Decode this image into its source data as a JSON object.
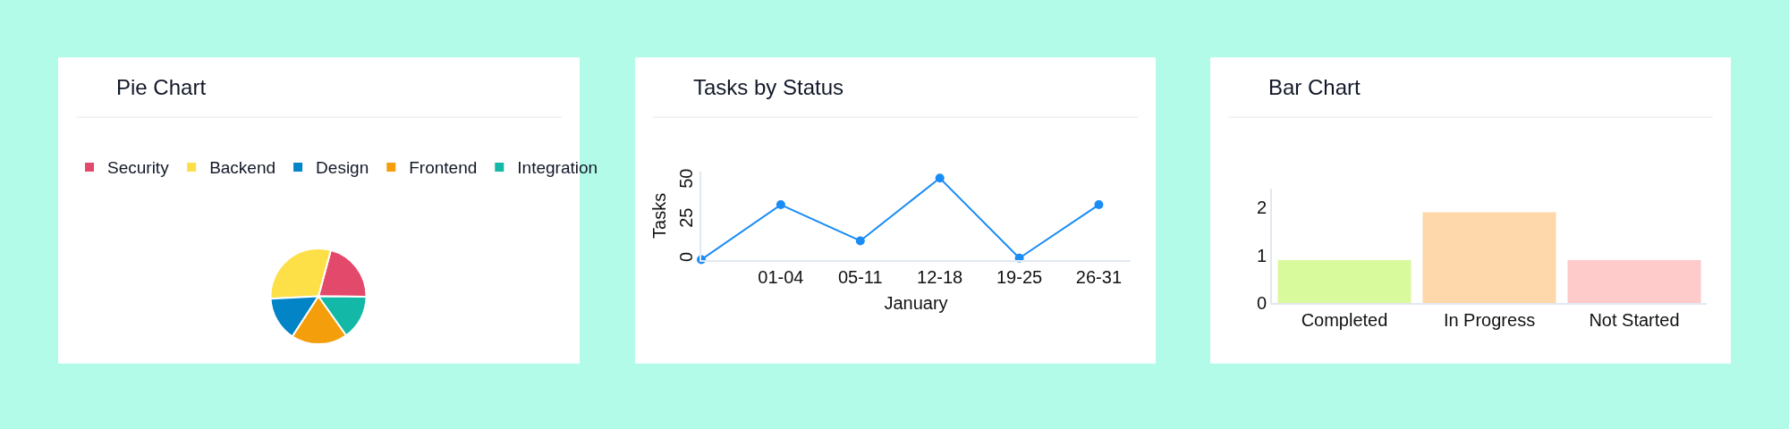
{
  "chart_data": [
    {
      "type": "pie",
      "title": "Pie Chart",
      "categories": [
        "Security",
        "Backend",
        "Design",
        "Frontend",
        "Integration"
      ],
      "values": [
        21,
        30,
        15,
        19,
        15
      ],
      "colors": [
        "#e3496a",
        "#fde047",
        "#0284c7",
        "#f59e0b",
        "#14b8a6"
      ],
      "legend": "top"
    },
    {
      "type": "line",
      "title": "Tasks by Status",
      "xlabel": "January",
      "ylabel": "Tasks",
      "categories": [
        null,
        "01-04",
        "05-11",
        "12-18",
        "19-25",
        "26-31"
      ],
      "series": [
        {
          "color": "#1a8cf5",
          "values": [
            0,
            35,
            12,
            52,
            1,
            35
          ]
        }
      ],
      "ylim": [
        0,
        56
      ],
      "yticks": [
        0,
        25,
        50
      ],
      "marker": "circle"
    },
    {
      "type": "bar",
      "title": "Bar Chart",
      "categories": [
        "Completed",
        "In Progress",
        "Not Started"
      ],
      "values": [
        0.9,
        1.9,
        0.9
      ],
      "colors": [
        "#d9f99d",
        "#fed7aa",
        "#fecaca"
      ],
      "ylim": [
        0,
        2.4
      ],
      "yticks": [
        0,
        1,
        2
      ]
    }
  ]
}
